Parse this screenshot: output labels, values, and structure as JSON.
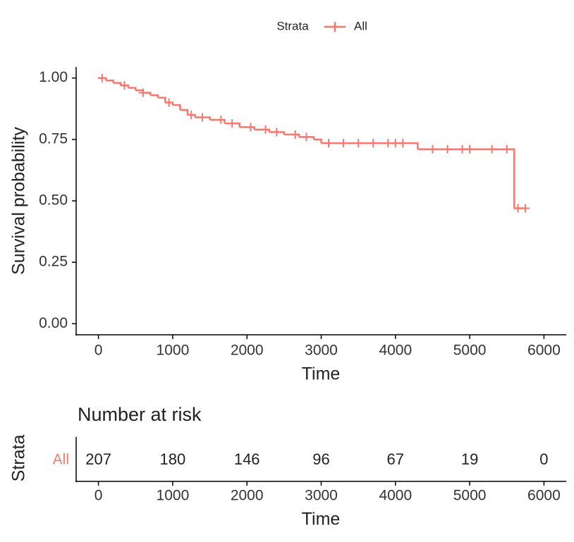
{
  "chart_data": {
    "type": "step",
    "legend_title": "Strata",
    "legend_position": "top",
    "xlabel": "Time",
    "ylabel": "Survival probability",
    "xlim": [
      -300,
      6300
    ],
    "ylim": [
      -0.045,
      1.045
    ],
    "xticks": [
      0,
      1000,
      2000,
      3000,
      4000,
      5000,
      6000
    ],
    "yticks": [
      {
        "value": 0,
        "label": "0.00"
      },
      {
        "value": 0.25,
        "label": "0.25"
      },
      {
        "value": 0.5,
        "label": "0.50"
      },
      {
        "value": 0.75,
        "label": "0.75"
      },
      {
        "value": 1,
        "label": "1.00"
      }
    ],
    "series": [
      {
        "name": "All",
        "color": "#f8766d",
        "x": [
          0,
          100,
          200,
          300,
          400,
          500,
          600,
          700,
          800,
          900,
          1000,
          1100,
          1200,
          1300,
          1500,
          1700,
          1900,
          2100,
          2300,
          2500,
          2700,
          2900,
          3000,
          4300,
          5600,
          5750
        ],
        "values": [
          1.0,
          0.99,
          0.98,
          0.97,
          0.96,
          0.95,
          0.94,
          0.93,
          0.92,
          0.9,
          0.89,
          0.87,
          0.85,
          0.84,
          0.83,
          0.815,
          0.8,
          0.79,
          0.78,
          0.77,
          0.76,
          0.75,
          0.735,
          0.71,
          0.47,
          0.47
        ],
        "censored": {
          "x": [
            50,
            350,
            600,
            950,
            1250,
            1400,
            1650,
            1800,
            2050,
            2250,
            2400,
            2650,
            2800,
            3100,
            3300,
            3500,
            3700,
            3900,
            4000,
            4100,
            4500,
            4700,
            4900,
            5000,
            5300,
            5500,
            5650,
            5750
          ],
          "values": [
            1.0,
            0.97,
            0.94,
            0.9,
            0.85,
            0.84,
            0.83,
            0.815,
            0.8,
            0.79,
            0.78,
            0.77,
            0.76,
            0.735,
            0.735,
            0.735,
            0.735,
            0.735,
            0.735,
            0.735,
            0.71,
            0.71,
            0.71,
            0.71,
            0.71,
            0.71,
            0.47,
            0.47
          ]
        }
      }
    ],
    "risk_table": {
      "title": "Number at risk",
      "ylabel": "Strata",
      "strata": "All",
      "xlabel": "Time",
      "xticks": [
        0,
        1000,
        2000,
        3000,
        4000,
        5000,
        6000
      ],
      "counts": [
        207,
        180,
        146,
        96,
        67,
        19,
        0
      ]
    }
  }
}
